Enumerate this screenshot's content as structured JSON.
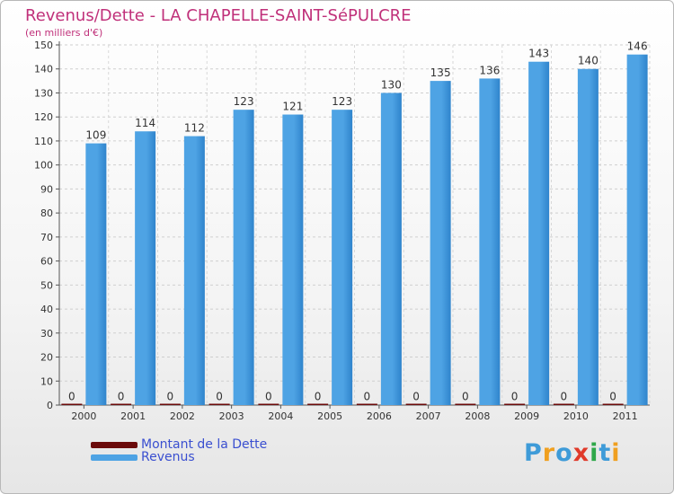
{
  "header": {
    "title": "Revenus/Dette - LA CHAPELLE-SAINT-SéPULCRE",
    "subtitle": "(en milliers d'€)"
  },
  "colors": {
    "debt": "#6b0a0a",
    "revenue": "#4ea3e4",
    "revenue_dark": "#2f84cc",
    "title": "#c0307a",
    "legend_text": "#3a4fd0"
  },
  "chart_data": {
    "type": "bar",
    "categories": [
      "2000",
      "2001",
      "2002",
      "2003",
      "2004",
      "2005",
      "2006",
      "2007",
      "2008",
      "2009",
      "2010",
      "2011"
    ],
    "series": [
      {
        "name": "Montant de la Dette",
        "values": [
          0,
          0,
          0,
          0,
          0,
          0,
          0,
          0,
          0,
          0,
          0,
          0
        ]
      },
      {
        "name": "Revenus",
        "values": [
          109,
          114,
          112,
          123,
          121,
          123,
          130,
          135,
          136,
          143,
          140,
          146
        ]
      }
    ],
    "ylim": [
      0,
      150
    ],
    "yticks": [
      0,
      10,
      20,
      30,
      40,
      50,
      60,
      70,
      80,
      90,
      100,
      110,
      120,
      130,
      140,
      150
    ],
    "grid": true,
    "legend_position": "bottom-left"
  },
  "legend": {
    "items": [
      {
        "label": "Montant de la Dette"
      },
      {
        "label": "Revenus"
      }
    ]
  },
  "logo": {
    "letters": [
      "P",
      "r",
      "o",
      "x",
      "i",
      "t",
      "i"
    ],
    "colors": [
      "#3e9bd8",
      "#f0a020",
      "#3e9bd8",
      "#e03a2a",
      "#2fa84a",
      "#3e9bd8",
      "#f0a020"
    ]
  }
}
